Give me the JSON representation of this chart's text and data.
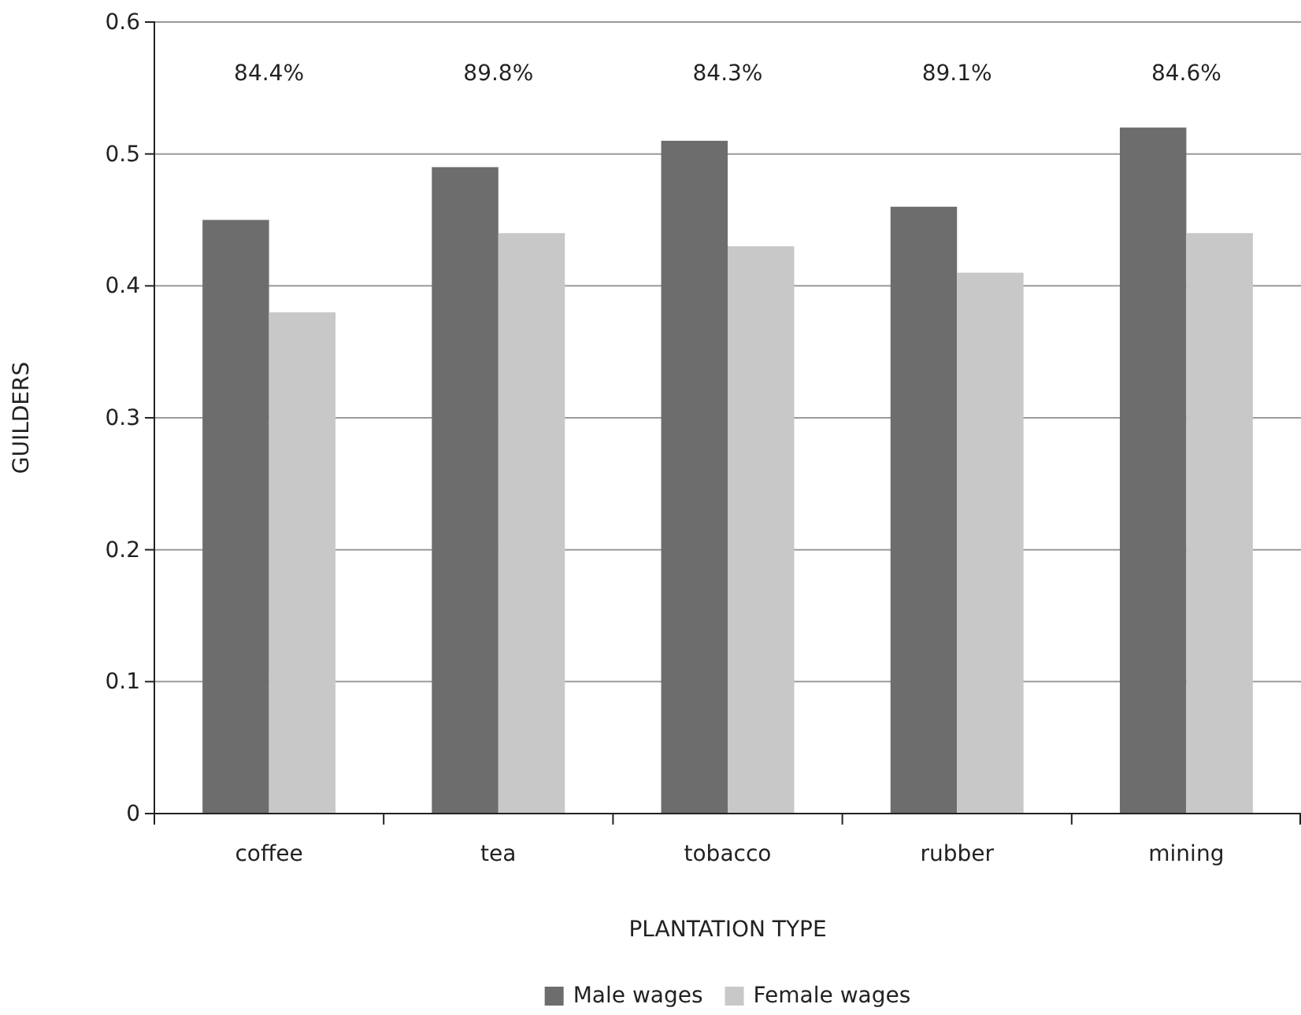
{
  "chart_data": {
    "type": "bar",
    "xlabel": "PLANTATION TYPE",
    "ylabel": "GUILDERS",
    "categories": [
      "coffee",
      "tea",
      "tobacco",
      "rubber",
      "mining"
    ],
    "series": [
      {
        "name": "Male wages",
        "color": "#6d6d6d",
        "values": [
          0.45,
          0.49,
          0.51,
          0.46,
          0.52
        ]
      },
      {
        "name": "Female wages",
        "color": "#c8c8c8",
        "values": [
          0.38,
          0.44,
          0.43,
          0.41,
          0.44
        ]
      }
    ],
    "ylim": [
      0,
      0.6
    ],
    "yticks": [
      {
        "value": 0,
        "label": "0"
      },
      0.1,
      0.2,
      0.3,
      0.4,
      0.5,
      0.6
    ],
    "grid": "y",
    "legend": "bottom",
    "annotations": [
      "84.4%",
      "89.8%",
      "84.3%",
      "89.1%",
      "84.6%"
    ]
  }
}
